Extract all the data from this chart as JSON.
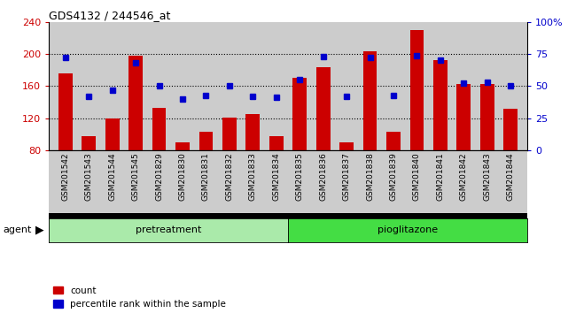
{
  "title": "GDS4132 / 244546_at",
  "samples": [
    "GSM201542",
    "GSM201543",
    "GSM201544",
    "GSM201545",
    "GSM201829",
    "GSM201830",
    "GSM201831",
    "GSM201832",
    "GSM201833",
    "GSM201834",
    "GSM201835",
    "GSM201836",
    "GSM201837",
    "GSM201838",
    "GSM201839",
    "GSM201840",
    "GSM201841",
    "GSM201842",
    "GSM201843",
    "GSM201844"
  ],
  "counts": [
    176,
    98,
    120,
    198,
    133,
    90,
    103,
    121,
    125,
    97,
    170,
    183,
    90,
    203,
    103,
    230,
    192,
    163,
    163,
    132
  ],
  "percentiles": [
    72,
    42,
    47,
    68,
    50,
    40,
    43,
    50,
    42,
    41,
    55,
    73,
    42,
    72,
    43,
    74,
    70,
    52,
    53,
    50
  ],
  "pretreatment_count": 10,
  "pioglitazone_count": 10,
  "bar_color": "#cc0000",
  "dot_color": "#0000cc",
  "left_ylim": [
    80,
    240
  ],
  "left_yticks": [
    80,
    120,
    160,
    200,
    240
  ],
  "right_ylim": [
    0,
    100
  ],
  "right_yticks": [
    0,
    25,
    50,
    75,
    100
  ],
  "right_yticklabels": [
    "0",
    "25",
    "50",
    "75",
    "100%"
  ],
  "dotted_lines": [
    120,
    160,
    200
  ],
  "bg_color": "#cccccc",
  "pretreatment_color": "#aaeaaa",
  "pioglitazone_color": "#44dd44",
  "agent_label": "agent",
  "pretreatment_label": "pretreatment",
  "pioglitazone_label": "pioglitazone",
  "legend_count_label": "count",
  "legend_percentile_label": "percentile rank within the sample"
}
